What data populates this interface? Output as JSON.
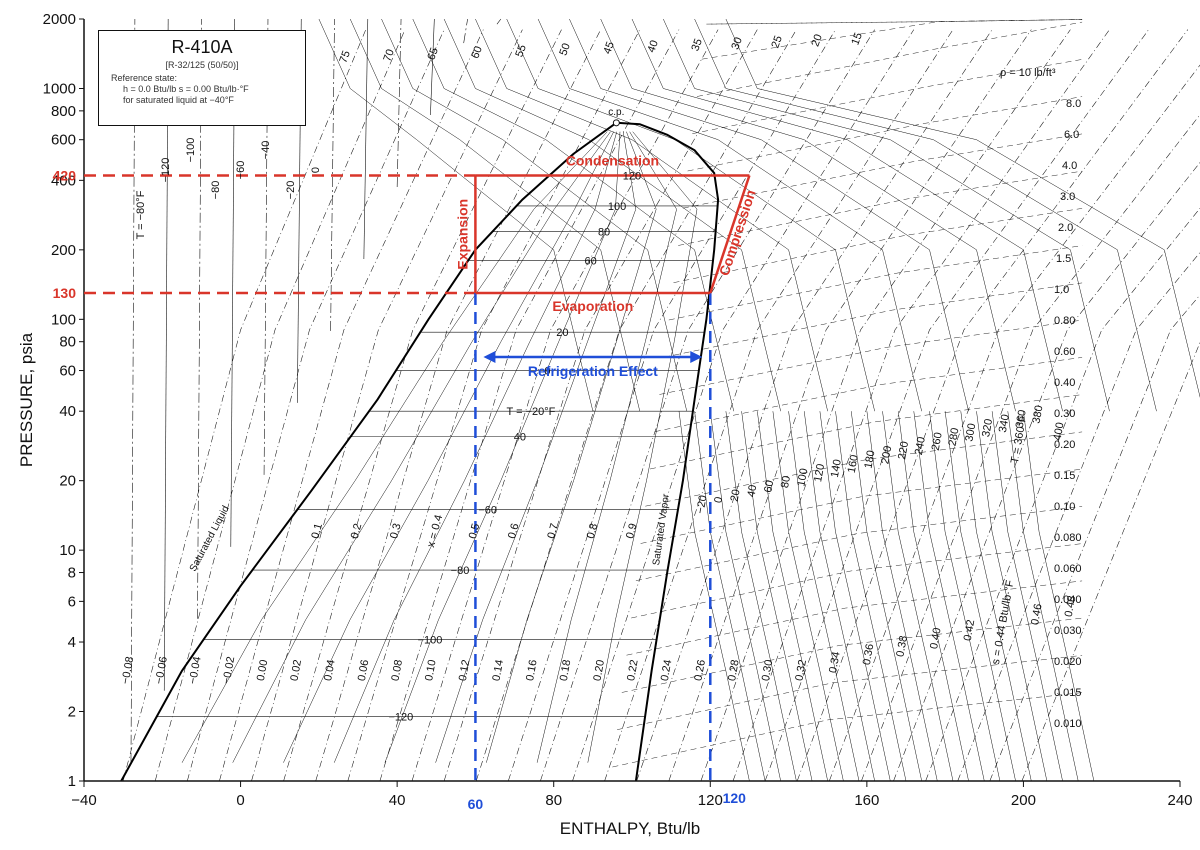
{
  "chart_data": {
    "type": "line",
    "title": "R-410A",
    "subtitle": "[R-32/125 (50/50)]",
    "reference_state": [
      "Reference state:",
      "h = 0.0 Btu/lb     s = 0.00 Btu/lb·°F",
      "for saturated liquid at −40°F"
    ],
    "xlabel": "ENTHALPY, Btu/lb",
    "ylabel": "PRESSURE, psia",
    "xlim": [
      -40,
      240
    ],
    "ylim": [
      1,
      2000
    ],
    "y_scale": "log",
    "x_ticks": [
      "−40",
      "0",
      "40",
      "80",
      "120",
      "160",
      "200",
      "240"
    ],
    "y_ticks": [
      {
        "v": 1,
        "label": "1"
      },
      {
        "v": 2,
        "label": "2"
      },
      {
        "v": 4,
        "label": "4"
      },
      {
        "v": 6,
        "label": "6"
      },
      {
        "v": 8,
        "label": "8"
      },
      {
        "v": 10,
        "label": "10"
      },
      {
        "v": 20,
        "label": "20"
      },
      {
        "v": 40,
        "label": "40"
      },
      {
        "v": 60,
        "label": "60"
      },
      {
        "v": 80,
        "label": "80"
      },
      {
        "v": 100,
        "label": "100"
      },
      {
        "v": 200,
        "label": "200"
      },
      {
        "v": 400,
        "label": "400"
      },
      {
        "v": 600,
        "label": "600"
      },
      {
        "v": 800,
        "label": "800"
      },
      {
        "v": 1000,
        "label": "1000"
      },
      {
        "v": 2000,
        "label": "2000"
      }
    ],
    "saturated_liquid": {
      "name": "Saturated Liquid",
      "h": [
        -30.5,
        -15,
        0,
        18,
        35,
        48,
        60,
        72,
        85,
        96
      ],
      "p": [
        1,
        3,
        7,
        18,
        45,
        100,
        200,
        330,
        520,
        710
      ]
    },
    "saturated_vapor": {
      "name": "Saturated Vapor",
      "h": [
        101,
        105,
        109,
        113,
        116,
        119,
        121,
        122,
        121,
        116,
        109,
        102,
        96
      ],
      "p": [
        1,
        3,
        8,
        20,
        45,
        100,
        200,
        330,
        430,
        540,
        630,
        700,
        710
      ]
    },
    "critical_point_label": "c.p.",
    "isotherms_inside_dome": [
      {
        "label": "−120",
        "p": 1.9
      },
      {
        "label": "−100",
        "p": 4.1
      },
      {
        "label": "−80",
        "p": 8.2
      },
      {
        "label": "−60",
        "p": 15
      },
      {
        "label": "T = −20°F",
        "p": 40
      },
      {
        "label": "40",
        "p": 31
      },
      {
        "label": "0",
        "p": 60
      },
      {
        "label": "20",
        "p": 88
      },
      {
        "label": "60",
        "p": 180
      },
      {
        "label": "80",
        "p": 240
      },
      {
        "label": "100",
        "p": 310
      },
      {
        "label": "120",
        "p": 420
      }
    ],
    "quality_labels": [
      "0.1",
      "0.2",
      "0.3",
      "x = 0.4",
      "0.5",
      "0.6",
      "0.7",
      "0.8",
      "0.9"
    ],
    "entropy_labels": [
      "−0.08",
      "−0.06",
      "−0.04",
      "−0.02",
      "0.00",
      "0.02",
      "0.04",
      "0.06",
      "0.08",
      "0.10",
      "0.12",
      "0.14",
      "0.16",
      "0.18",
      "0.20",
      "0.22",
      "0.24",
      "0.26",
      "0.28",
      "0.30",
      "0.32",
      "0.34",
      "0.36",
      "0.38",
      "0.40",
      "0.42",
      "s = 0.44 Btu/lb·°F",
      "0.46",
      "0.48"
    ],
    "density_labels": [
      "ρ = 10 lb/ft³",
      "8.0",
      "6.0",
      "4.0",
      "3.0",
      "2.0",
      "1.5",
      "1.0",
      "0.80",
      "0.60",
      "0.40",
      "0.30",
      "0.20",
      "0.15",
      "0.10",
      "0.080",
      "0.060",
      "0.040",
      "0.030",
      "0.020",
      "0.015",
      "0.010"
    ],
    "liquid_region_T_labels": [
      "T = −80°F",
      "−120",
      "−100",
      "−80",
      "−60",
      "−40",
      "−20",
      "0",
      "20",
      "40",
      "60",
      "80",
      "100",
      "120"
    ],
    "top_density_labels": [
      "75",
      "70",
      "65",
      "60",
      "55",
      "50",
      "45",
      "40",
      "35",
      "30",
      "25",
      "20",
      "15"
    ],
    "superheat_T_labels": [
      "−20",
      "0",
      "20",
      "40",
      "60",
      "80",
      "100",
      "120",
      "140",
      "160",
      "180",
      "200",
      "220",
      "240",
      "260",
      "280",
      "300",
      "320",
      "340",
      "360",
      "380",
      "T = 360°F",
      "400"
    ],
    "cycle": {
      "name": "Refrigeration cycle",
      "h": [
        60,
        60,
        122,
        130,
        60
      ],
      "p": [
        130,
        420,
        420,
        420,
        130
      ],
      "evaporation": {
        "h": [
          60,
          120
        ],
        "p": [
          130,
          130
        ]
      },
      "compression": {
        "h": [
          120,
          130
        ],
        "p": [
          130,
          420
        ]
      },
      "condensation": {
        "h": [
          60,
          130
        ],
        "p": [
          420,
          420
        ]
      },
      "expansion": {
        "h": [
          60,
          60
        ],
        "p": [
          420,
          130
        ]
      }
    },
    "annotations": {
      "condensation": "Condensation",
      "expansion": "Expansion",
      "compression": "Compression",
      "evaporation": "Evaporation",
      "refrigeration_effect": "Refrigeration Effect"
    },
    "reference_lines": {
      "pressure": [
        {
          "v": 420,
          "label": "420"
        },
        {
          "v": 130,
          "label": "130"
        }
      ],
      "enthalpy": [
        {
          "v": 60,
          "label": "60"
        },
        {
          "v": 120,
          "label": "120"
        }
      ]
    },
    "colors": {
      "cycle": "#d9352a",
      "effect": "#1f4ed8",
      "grid": "#111111",
      "dome": "#000000"
    },
    "grid": true
  }
}
